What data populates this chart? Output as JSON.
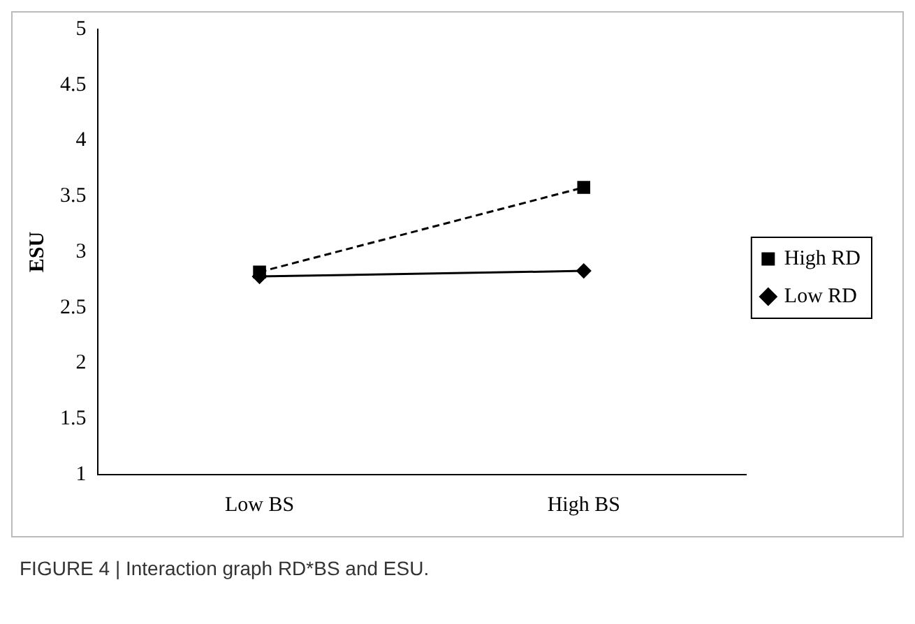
{
  "chart_data": {
    "type": "line",
    "ylabel": "ESU",
    "categories": [
      "Low BS",
      "High BS"
    ],
    "series": [
      {
        "name": "Low RD",
        "color": "#000000",
        "values": [
          2.78,
          2.83
        ],
        "marker": "diamond",
        "line_style": "solid"
      },
      {
        "name": "High RD",
        "color": "#000000",
        "values": [
          2.82,
          3.58
        ],
        "marker": "square",
        "line_style": "dashed"
      }
    ],
    "ylim": [
      1,
      5
    ],
    "yticks": [
      1,
      1.5,
      2,
      2.5,
      3,
      3.5,
      4,
      4.5,
      5
    ],
    "grid": false,
    "legend": "right",
    "annotations": [
      "FIGURE 4 | Interaction graph RD*BS and ESU."
    ]
  }
}
